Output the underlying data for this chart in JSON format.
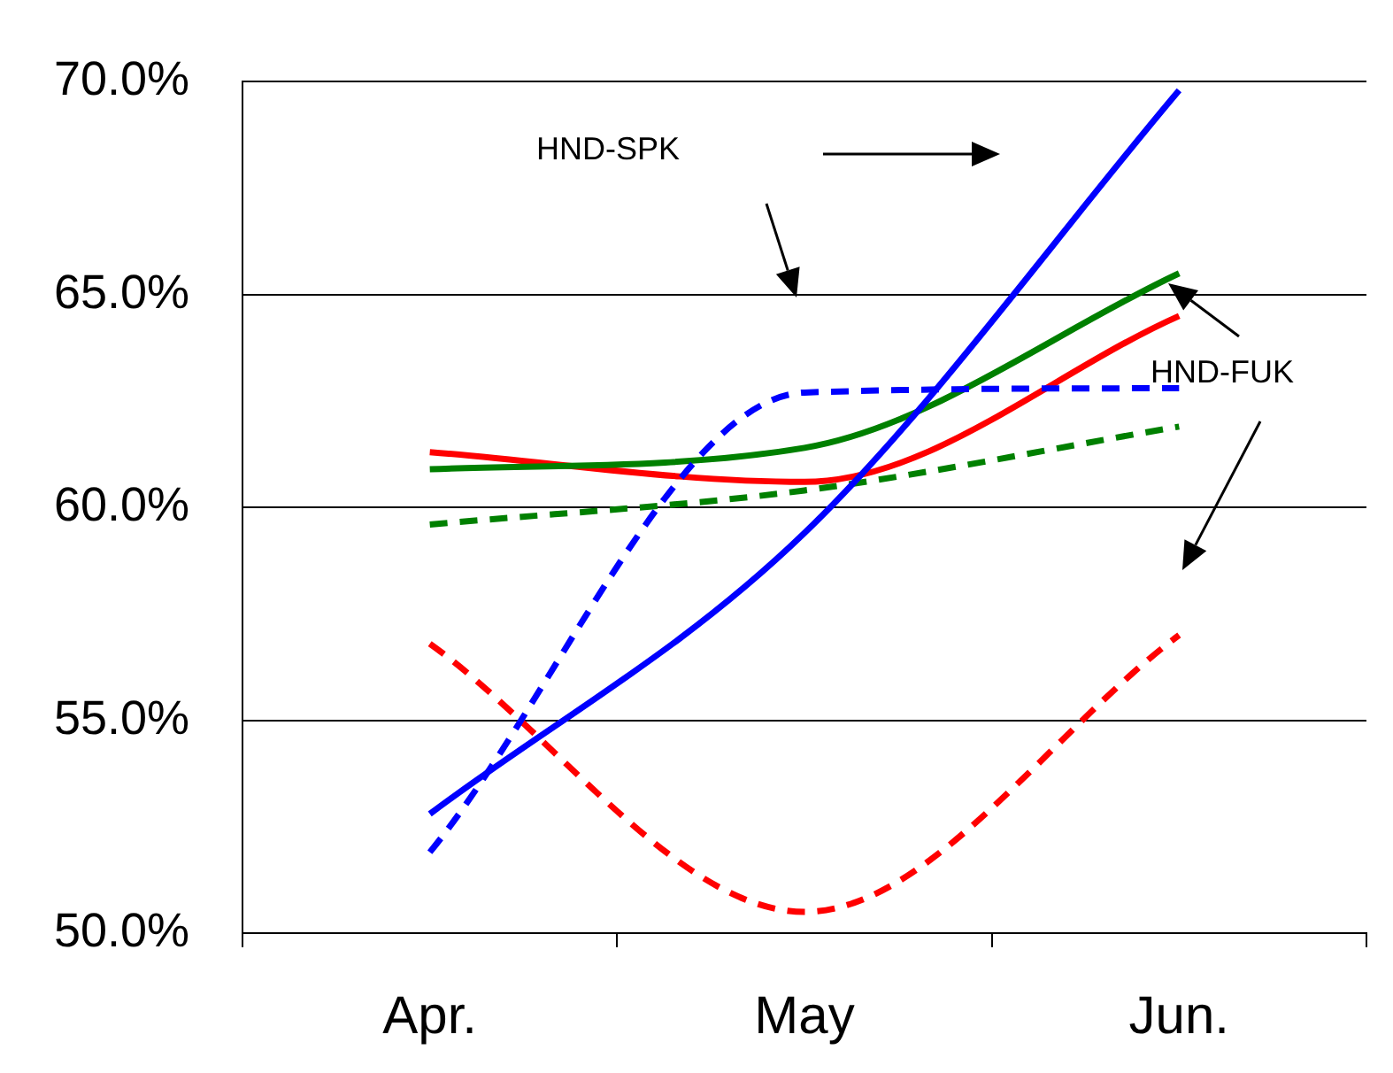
{
  "chart_data": {
    "type": "line",
    "categories": [
      "Apr.",
      "May",
      "Jun."
    ],
    "ylim": [
      50,
      70
    ],
    "yticks": [
      {
        "value": 50,
        "label": "50.0%"
      },
      {
        "value": 55,
        "label": "55.0%"
      },
      {
        "value": 60,
        "label": "60.0%"
      },
      {
        "value": 65,
        "label": "65.0%"
      },
      {
        "value": 70,
        "label": "70.0%"
      }
    ],
    "grid": "y",
    "legend": false,
    "marker": "none",
    "annotations": [
      "HND-SPK",
      "HND-FUK"
    ],
    "series": [
      {
        "color": "#0000ff",
        "line_style": "solid",
        "values": [
          52.8,
          59.4,
          69.8
        ]
      },
      {
        "color": "#0000ff",
        "line_style": "dashed",
        "values": [
          51.9,
          62.7,
          62.8
        ]
      },
      {
        "color": "#008000",
        "line_style": "solid",
        "values": [
          60.9,
          61.4,
          65.5
        ]
      },
      {
        "color": "#008000",
        "line_style": "dashed",
        "values": [
          59.6,
          60.4,
          61.9
        ]
      },
      {
        "color": "#ff0000",
        "line_style": "solid",
        "values": [
          61.3,
          60.6,
          64.5
        ]
      },
      {
        "color": "#ff0000",
        "line_style": "dashed",
        "values": [
          56.8,
          50.5,
          57.0
        ]
      }
    ]
  }
}
